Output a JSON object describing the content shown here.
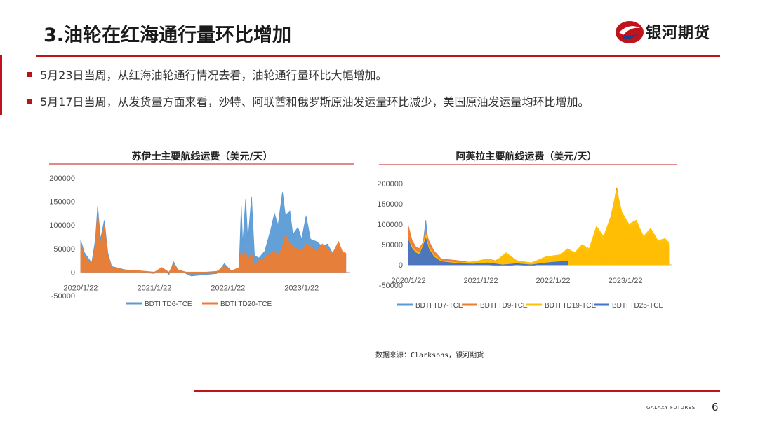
{
  "slide": {
    "title": "3.油轮在红海通行量环比增加",
    "brand": "银河期货",
    "footer_brand": "GALAXY FUTURES",
    "page_number": "6",
    "source": "数据来源：Clarksons，银河期货",
    "accent_color": "#c0141c"
  },
  "bullets": [
    "5月23日当周，从红海油轮通行情况去看，油轮通行量环比大幅增加。",
    "5月17日当周，从发货量方面来看，沙特、阿联酋和俄罗斯原油发运量环比减少，美国原油发运量均环比增加。"
  ],
  "chart_data": [
    {
      "type": "area",
      "title": "苏伊士主要航线运费（美元/天）",
      "x_ticks": [
        "2020/1/22",
        "2021/1/22",
        "2022/1/22",
        "2023/1/22"
      ],
      "y_ticks": [
        "200000",
        "150000",
        "100000",
        "50000",
        "0",
        "-50000"
      ],
      "ylim": [
        -50000,
        200000
      ],
      "xlim": [
        2020.0,
        2023.65
      ],
      "grid": false,
      "legend_position": "bottom",
      "series": [
        {
          "name": "BDTI TD6-TCE",
          "color": "#5b9bd5",
          "points": [
            [
              2020.0,
              68000
            ],
            [
              2020.05,
              42000
            ],
            [
              2020.1,
              30000
            ],
            [
              2020.15,
              20000
            ],
            [
              2020.2,
              70000
            ],
            [
              2020.23,
              140000
            ],
            [
              2020.27,
              70000
            ],
            [
              2020.32,
              110000
            ],
            [
              2020.37,
              40000
            ],
            [
              2020.42,
              12000
            ],
            [
              2020.6,
              5000
            ],
            [
              2020.8,
              0
            ],
            [
              2021.0,
              -3000
            ],
            [
              2021.1,
              8000
            ],
            [
              2021.2,
              -5000
            ],
            [
              2021.26,
              22000
            ],
            [
              2021.32,
              5000
            ],
            [
              2021.5,
              -8000
            ],
            [
              2021.7,
              -5000
            ],
            [
              2021.85,
              -3000
            ],
            [
              2021.95,
              18000
            ],
            [
              2022.05,
              2000
            ],
            [
              2022.15,
              5000
            ],
            [
              2022.18,
              140000
            ],
            [
              2022.2,
              60000
            ],
            [
              2022.24,
              155000
            ],
            [
              2022.27,
              65000
            ],
            [
              2022.32,
              160000
            ],
            [
              2022.36,
              35000
            ],
            [
              2022.42,
              30000
            ],
            [
              2022.5,
              45000
            ],
            [
              2022.58,
              90000
            ],
            [
              2022.63,
              125000
            ],
            [
              2022.68,
              100000
            ],
            [
              2022.74,
              170000
            ],
            [
              2022.78,
              120000
            ],
            [
              2022.84,
              130000
            ],
            [
              2022.88,
              80000
            ],
            [
              2022.95,
              95000
            ],
            [
              2023.0,
              70000
            ],
            [
              2023.06,
              120000
            ],
            [
              2023.12,
              70000
            ],
            [
              2023.2,
              65000
            ],
            [
              2023.28,
              55000
            ],
            [
              2023.35,
              60000
            ],
            [
              2023.42,
              40000
            ],
            [
              2023.5,
              55000
            ],
            [
              2023.55,
              40000
            ],
            [
              2023.6,
              38000
            ]
          ]
        },
        {
          "name": "BDTI TD20-TCE",
          "color": "#ed7d31",
          "points": [
            [
              2020.0,
              60000
            ],
            [
              2020.05,
              35000
            ],
            [
              2020.1,
              25000
            ],
            [
              2020.15,
              18000
            ],
            [
              2020.2,
              60000
            ],
            [
              2020.23,
              130000
            ],
            [
              2020.27,
              60000
            ],
            [
              2020.32,
              100000
            ],
            [
              2020.37,
              35000
            ],
            [
              2020.42,
              10000
            ],
            [
              2020.6,
              5000
            ],
            [
              2020.8,
              3000
            ],
            [
              2021.0,
              0
            ],
            [
              2021.1,
              10000
            ],
            [
              2021.2,
              0
            ],
            [
              2021.26,
              18000
            ],
            [
              2021.32,
              5000
            ],
            [
              2021.5,
              -3000
            ],
            [
              2021.7,
              0
            ],
            [
              2021.85,
              2000
            ],
            [
              2021.95,
              12000
            ],
            [
              2022.05,
              3000
            ],
            [
              2022.15,
              10000
            ],
            [
              2022.18,
              50000
            ],
            [
              2022.2,
              30000
            ],
            [
              2022.24,
              45000
            ],
            [
              2022.27,
              25000
            ],
            [
              2022.32,
              40000
            ],
            [
              2022.36,
              15000
            ],
            [
              2022.42,
              25000
            ],
            [
              2022.5,
              30000
            ],
            [
              2022.58,
              40000
            ],
            [
              2022.63,
              45000
            ],
            [
              2022.68,
              35000
            ],
            [
              2022.74,
              55000
            ],
            [
              2022.78,
              80000
            ],
            [
              2022.84,
              60000
            ],
            [
              2022.88,
              55000
            ],
            [
              2022.95,
              50000
            ],
            [
              2023.0,
              45000
            ],
            [
              2023.06,
              60000
            ],
            [
              2023.12,
              55000
            ],
            [
              2023.2,
              45000
            ],
            [
              2023.28,
              60000
            ],
            [
              2023.35,
              50000
            ],
            [
              2023.42,
              40000
            ],
            [
              2023.5,
              65000
            ],
            [
              2023.55,
              45000
            ],
            [
              2023.6,
              40000
            ]
          ]
        }
      ]
    },
    {
      "type": "area",
      "title": "阿芙拉主要航线运费（美元/天）",
      "x_ticks": [
        "2020/1/22",
        "2021/1/22",
        "2022/1/22",
        "2023/1/22"
      ],
      "y_ticks": [
        "200000",
        "150000",
        "100000",
        "50000",
        "0",
        "-50000"
      ],
      "ylim": [
        -50000,
        200000
      ],
      "xlim": [
        2020.0,
        2023.65
      ],
      "grid": false,
      "legend_position": "bottom",
      "series": [
        {
          "name": "BDTI TD7-TCE",
          "color": "#5b9bd5",
          "points": [
            [
              2020.0,
              70000
            ],
            [
              2020.05,
              40000
            ],
            [
              2020.1,
              30000
            ],
            [
              2020.15,
              25000
            ],
            [
              2020.2,
              50000
            ],
            [
              2020.24,
              110000
            ],
            [
              2020.28,
              40000
            ],
            [
              2020.35,
              20000
            ],
            [
              2020.45,
              10000
            ],
            [
              2020.7,
              5000
            ],
            [
              2020.9,
              2000
            ],
            [
              2021.1,
              0
            ],
            [
              2021.3,
              -3000
            ],
            [
              2021.5,
              0
            ],
            [
              2021.7,
              -2000
            ],
            [
              2021.9,
              3000
            ],
            [
              2022.1,
              8000
            ],
            [
              2022.2,
              20000
            ],
            [
              2022.3,
              10000
            ],
            [
              2022.5,
              15000
            ],
            [
              2022.7,
              20000
            ],
            [
              2022.9,
              15000
            ],
            [
              2023.1,
              10000
            ],
            [
              2023.3,
              15000
            ],
            [
              2023.5,
              10000
            ],
            [
              2023.6,
              8000
            ]
          ]
        },
        {
          "name": "BDTI TD9-TCE",
          "color": "#ed7d31",
          "points": [
            [
              2020.0,
              95000
            ],
            [
              2020.05,
              60000
            ],
            [
              2020.1,
              45000
            ],
            [
              2020.15,
              40000
            ],
            [
              2020.2,
              55000
            ],
            [
              2020.24,
              85000
            ],
            [
              2020.28,
              60000
            ],
            [
              2020.35,
              35000
            ],
            [
              2020.45,
              15000
            ],
            [
              2020.7,
              10000
            ],
            [
              2020.9,
              5000
            ],
            [
              2021.1,
              15000
            ],
            [
              2021.2,
              10000
            ],
            [
              2021.35,
              25000
            ],
            [
              2021.5,
              10000
            ],
            [
              2021.7,
              5000
            ],
            [
              2021.9,
              15000
            ],
            [
              2022.1,
              20000
            ],
            [
              2022.2,
              35000
            ],
            [
              2022.3,
              25000
            ],
            [
              2022.4,
              40000
            ],
            [
              2022.5,
              30000
            ],
            [
              2022.6,
              80000
            ],
            [
              2022.7,
              60000
            ],
            [
              2022.8,
              110000
            ],
            [
              2022.88,
              190000
            ],
            [
              2022.95,
              120000
            ],
            [
              2023.05,
              90000
            ],
            [
              2023.15,
              100000
            ],
            [
              2023.25,
              60000
            ],
            [
              2023.35,
              80000
            ],
            [
              2023.45,
              50000
            ],
            [
              2023.55,
              55000
            ],
            [
              2023.6,
              45000
            ]
          ]
        },
        {
          "name": "BDTI TD19-TCE",
          "color": "#ffc000",
          "points": [
            [
              2020.0,
              60000
            ],
            [
              2020.05,
              45000
            ],
            [
              2020.1,
              35000
            ],
            [
              2020.15,
              30000
            ],
            [
              2020.2,
              50000
            ],
            [
              2020.24,
              75000
            ],
            [
              2020.28,
              45000
            ],
            [
              2020.35,
              25000
            ],
            [
              2020.45,
              10000
            ],
            [
              2020.7,
              5000
            ],
            [
              2020.9,
              8000
            ],
            [
              2021.1,
              15000
            ],
            [
              2021.2,
              8000
            ],
            [
              2021.35,
              30000
            ],
            [
              2021.5,
              10000
            ],
            [
              2021.7,
              5000
            ],
            [
              2021.9,
              20000
            ],
            [
              2022.1,
              25000
            ],
            [
              2022.2,
              40000
            ],
            [
              2022.3,
              30000
            ],
            [
              2022.4,
              50000
            ],
            [
              2022.5,
              40000
            ],
            [
              2022.6,
              95000
            ],
            [
              2022.7,
              70000
            ],
            [
              2022.8,
              120000
            ],
            [
              2022.88,
              185000
            ],
            [
              2022.95,
              130000
            ],
            [
              2023.05,
              100000
            ],
            [
              2023.15,
              110000
            ],
            [
              2023.25,
              70000
            ],
            [
              2023.35,
              90000
            ],
            [
              2023.45,
              60000
            ],
            [
              2023.55,
              65000
            ],
            [
              2023.6,
              55000
            ]
          ]
        },
        {
          "name": "BDTI TD25-TCE",
          "color": "#4472c4",
          "points": [
            [
              2020.0,
              60000
            ],
            [
              2020.05,
              40000
            ],
            [
              2020.1,
              30000
            ],
            [
              2020.15,
              25000
            ],
            [
              2020.2,
              45000
            ],
            [
              2020.24,
              65000
            ],
            [
              2020.28,
              40000
            ],
            [
              2020.35,
              20000
            ],
            [
              2020.45,
              8000
            ],
            [
              2020.7,
              3000
            ],
            [
              2020.9,
              2000
            ],
            [
              2021.1,
              5000
            ],
            [
              2021.3,
              0
            ],
            [
              2021.5,
              3000
            ],
            [
              2021.7,
              0
            ],
            [
              2021.9,
              5000
            ],
            [
              2022.1,
              8000
            ],
            [
              2022.2,
              10000
            ]
          ]
        }
      ]
    }
  ]
}
